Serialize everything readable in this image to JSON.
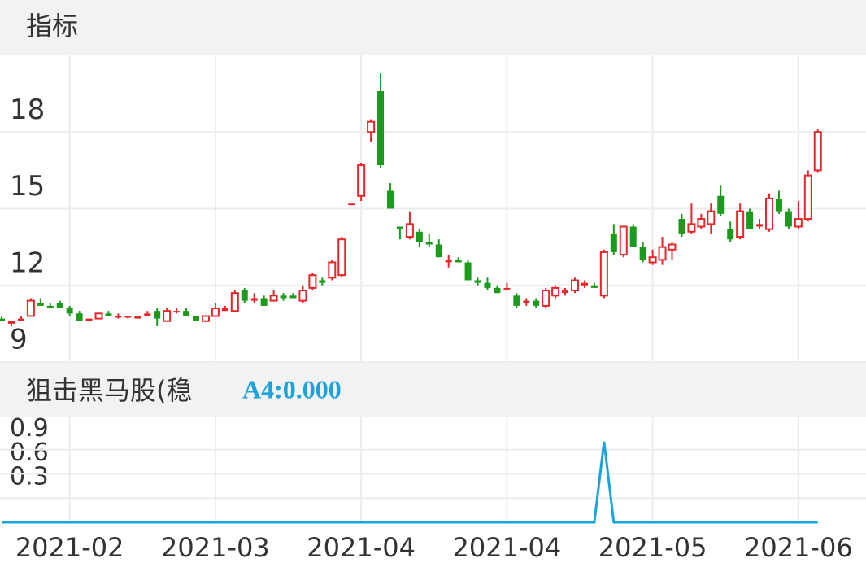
{
  "header": {
    "title": "指标"
  },
  "chart_data": [
    {
      "type": "candlestick",
      "up_color": "#e8262a",
      "down_color": "#1c9a1c",
      "up_hollow": true,
      "grid": true,
      "ylim": [
        9,
        21
      ],
      "yticks": [
        9,
        12,
        15,
        18
      ],
      "xlim": [
        -0.17,
        88.96
      ],
      "xticks": [
        {
          "value": 7,
          "label": "2021-02"
        },
        {
          "value": 22,
          "label": "2021-03"
        },
        {
          "value": 37,
          "label": "2021-04"
        },
        {
          "value": 52,
          "label": "2021-04"
        },
        {
          "value": 67,
          "label": "2021-05"
        },
        {
          "value": 82,
          "label": "2021-06"
        }
      ],
      "ohlc": [
        [
          10.7,
          10.8,
          10.6,
          10.6
        ],
        [
          10.5,
          10.6,
          10.4,
          10.6
        ],
        [
          10.6,
          10.8,
          10.6,
          10.7
        ],
        [
          10.8,
          11.5,
          10.8,
          11.4
        ],
        [
          11.3,
          11.5,
          11.2,
          11.2
        ],
        [
          11.2,
          11.3,
          11.1,
          11.1
        ],
        [
          11.3,
          11.4,
          11.1,
          11.1
        ],
        [
          11.1,
          11.2,
          10.8,
          10.9
        ],
        [
          10.9,
          11.0,
          10.6,
          10.6
        ],
        [
          10.6,
          10.7,
          10.6,
          10.7
        ],
        [
          10.7,
          10.9,
          10.7,
          10.9
        ],
        [
          10.9,
          11.0,
          10.8,
          10.8
        ],
        [
          10.8,
          10.9,
          10.7,
          10.8
        ],
        [
          10.8,
          10.8,
          10.7,
          10.8
        ],
        [
          10.7,
          10.8,
          10.7,
          10.8
        ],
        [
          10.8,
          11.0,
          10.8,
          10.9
        ],
        [
          11.0,
          11.1,
          10.4,
          10.7
        ],
        [
          10.6,
          11.1,
          10.6,
          11.0
        ],
        [
          11.0,
          11.1,
          10.9,
          11.0
        ],
        [
          11.0,
          11.1,
          10.8,
          10.8
        ],
        [
          10.8,
          10.8,
          10.6,
          10.6
        ],
        [
          10.6,
          10.8,
          10.6,
          10.8
        ],
        [
          10.8,
          11.3,
          10.8,
          11.1
        ],
        [
          11.0,
          11.2,
          11.0,
          11.1
        ],
        [
          11.0,
          11.8,
          11.0,
          11.7
        ],
        [
          11.8,
          11.9,
          11.3,
          11.4
        ],
        [
          11.4,
          11.7,
          11.3,
          11.5
        ],
        [
          11.5,
          11.6,
          11.2,
          11.2
        ],
        [
          11.4,
          11.8,
          11.4,
          11.6
        ],
        [
          11.6,
          11.7,
          11.4,
          11.5
        ],
        [
          11.6,
          11.7,
          11.5,
          11.5
        ],
        [
          11.4,
          12.0,
          11.3,
          11.8
        ],
        [
          11.9,
          12.5,
          11.8,
          12.4
        ],
        [
          12.2,
          12.3,
          12.0,
          12.1
        ],
        [
          12.3,
          13.0,
          12.2,
          12.9
        ],
        [
          12.4,
          13.9,
          12.3,
          13.8
        ],
        [
          15.2,
          15.2,
          15.2,
          15.2
        ],
        [
          15.5,
          16.8,
          15.3,
          16.7
        ],
        [
          18.0,
          18.5,
          17.6,
          18.4
        ],
        [
          19.6,
          20.3,
          16.6,
          16.7
        ],
        [
          15.7,
          16.0,
          15.0,
          15.0
        ],
        [
          14.3,
          14.3,
          13.8,
          14.2
        ],
        [
          13.9,
          14.9,
          13.8,
          14.4
        ],
        [
          14.1,
          14.2,
          13.5,
          13.7
        ],
        [
          13.7,
          14.0,
          13.5,
          13.6
        ],
        [
          13.6,
          13.8,
          13.1,
          13.1
        ],
        [
          12.9,
          13.2,
          12.7,
          13.0
        ],
        [
          13.0,
          13.1,
          12.9,
          12.9
        ],
        [
          12.9,
          13.0,
          12.2,
          12.2
        ],
        [
          12.2,
          12.3,
          12.0,
          12.1
        ],
        [
          12.1,
          12.3,
          11.8,
          11.9
        ],
        [
          11.9,
          12.0,
          11.7,
          11.7
        ],
        [
          11.9,
          12.1,
          11.8,
          11.9
        ],
        [
          11.6,
          11.7,
          11.1,
          11.2
        ],
        [
          11.3,
          11.5,
          11.2,
          11.4
        ],
        [
          11.4,
          11.5,
          11.1,
          11.2
        ],
        [
          11.2,
          11.9,
          11.1,
          11.8
        ],
        [
          11.6,
          12.0,
          11.5,
          11.9
        ],
        [
          11.7,
          11.9,
          11.6,
          11.8
        ],
        [
          11.8,
          12.3,
          11.7,
          12.2
        ],
        [
          12.0,
          12.2,
          11.9,
          12.1
        ],
        [
          12.0,
          12.1,
          11.9,
          11.9
        ],
        [
          11.6,
          13.4,
          11.5,
          13.3
        ],
        [
          14.0,
          14.4,
          13.2,
          13.3
        ],
        [
          13.2,
          14.3,
          13.1,
          14.3
        ],
        [
          14.3,
          14.4,
          13.5,
          13.5
        ],
        [
          13.5,
          13.7,
          12.9,
          13.0
        ],
        [
          12.9,
          13.4,
          12.8,
          13.1
        ],
        [
          13.0,
          13.9,
          12.8,
          13.5
        ],
        [
          13.4,
          13.7,
          13.0,
          13.6
        ],
        [
          14.6,
          14.8,
          13.9,
          14.0
        ],
        [
          14.1,
          15.2,
          14.0,
          14.4
        ],
        [
          14.3,
          14.8,
          14.2,
          14.6
        ],
        [
          14.4,
          15.2,
          14.0,
          14.9
        ],
        [
          15.5,
          15.9,
          14.7,
          14.8
        ],
        [
          14.2,
          14.5,
          13.7,
          13.8
        ],
        [
          13.9,
          15.2,
          13.8,
          14.9
        ],
        [
          14.9,
          15.0,
          14.2,
          14.2
        ],
        [
          14.3,
          14.6,
          14.2,
          14.4
        ],
        [
          14.2,
          15.6,
          14.1,
          15.4
        ],
        [
          15.4,
          15.7,
          14.8,
          14.9
        ],
        [
          14.9,
          15.0,
          14.2,
          14.3
        ],
        [
          14.3,
          15.3,
          14.2,
          14.6
        ],
        [
          14.6,
          16.5,
          14.5,
          16.3
        ],
        [
          16.5,
          18.1,
          16.4,
          18.0
        ]
      ]
    },
    {
      "type": "line",
      "title": "狙击黑马股(稳",
      "indicator_label": "A4:0.000",
      "color": "#1aa3dc",
      "grid": true,
      "ylim": [
        0,
        1.3
      ],
      "yticks": [
        0.3,
        0.6,
        0.9
      ],
      "values": [
        0,
        0,
        0,
        0,
        0,
        0,
        0,
        0,
        0,
        0,
        0,
        0,
        0,
        0,
        0,
        0,
        0,
        0,
        0,
        0,
        0,
        0,
        0,
        0,
        0,
        0,
        0,
        0,
        0,
        0,
        0,
        0,
        0,
        0,
        0,
        0,
        0,
        0,
        0,
        0,
        0,
        0,
        0,
        0,
        0,
        0,
        0,
        0,
        0,
        0,
        0,
        0,
        0,
        0,
        0,
        0,
        0,
        0,
        0,
        0,
        0,
        0,
        1,
        0,
        0,
        0,
        0,
        0,
        0,
        0,
        0,
        0,
        0,
        0,
        0,
        0,
        0,
        0,
        0,
        0,
        0,
        0,
        0,
        0,
        0
      ]
    }
  ]
}
